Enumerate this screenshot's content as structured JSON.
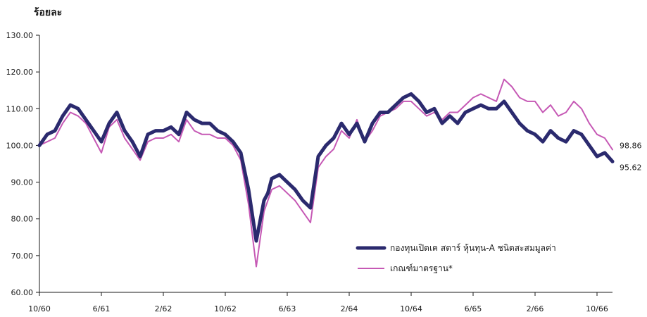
{
  "chart_data": {
    "type": "line",
    "unit_label": "ร้อยละ",
    "ylim": [
      60,
      130
    ],
    "yticks": [
      "60.00",
      "70.00",
      "80.00",
      "90.00",
      "100.00",
      "110.00",
      "120.00",
      "130.00"
    ],
    "xlabels": [
      "10/60",
      "6/61",
      "2/62",
      "10/62",
      "6/63",
      "2/64",
      "10/64",
      "6/65",
      "2/66",
      "10/66"
    ],
    "x_index_range": [
      0,
      74
    ],
    "x_label_positions": [
      0,
      8,
      16,
      24,
      32,
      40,
      48,
      56,
      64,
      72
    ],
    "grid": false,
    "legend_position": "bottom-right",
    "series": [
      {
        "name": "กองทุนเปิดเค สตาร์ หุ้นทุน-A ชนิดสะสมมูลค่า",
        "color": "#2b2a6e",
        "end_label": "95.62",
        "x": [
          0,
          1,
          2,
          3,
          4,
          5,
          6,
          7,
          8,
          9,
          10,
          11,
          12,
          13,
          14,
          15,
          16,
          17,
          18,
          19,
          20,
          21,
          22,
          23,
          24,
          25,
          26,
          27,
          28,
          29,
          29.5,
          30,
          31,
          32,
          33,
          34,
          35,
          36,
          37,
          37.5,
          38,
          39,
          40,
          41,
          42,
          43,
          44,
          45,
          46,
          47,
          48,
          49,
          50,
          51,
          52,
          53,
          54,
          55,
          56,
          57,
          58,
          59,
          60,
          61,
          62,
          63,
          64,
          65,
          66,
          67,
          68,
          69,
          70,
          71,
          72,
          73,
          74
        ],
        "y": [
          100,
          103,
          104,
          108,
          111,
          110,
          107,
          104,
          101,
          106,
          109,
          104,
          101,
          97,
          103,
          104,
          104,
          105,
          103,
          109,
          107,
          106,
          106,
          104,
          103,
          101,
          98,
          88,
          74,
          85,
          87,
          91,
          92,
          90,
          88,
          85,
          83,
          97,
          100,
          101,
          102,
          106,
          103,
          106,
          101,
          106,
          109,
          109,
          111,
          113,
          114,
          112,
          109,
          110,
          106,
          108,
          106,
          109,
          110,
          111,
          110,
          110,
          112,
          109,
          106,
          104,
          103,
          101,
          104,
          102,
          101,
          104,
          103,
          100,
          97,
          98,
          95.62
        ]
      },
      {
        "name": "เกณฑ์มาตรฐาน*",
        "color": "#c659b5",
        "end_label": "98.86",
        "x": [
          0,
          1,
          2,
          3,
          4,
          5,
          6,
          7,
          8,
          9,
          10,
          11,
          12,
          13,
          14,
          15,
          16,
          17,
          18,
          19,
          20,
          21,
          22,
          23,
          24,
          25,
          26,
          27,
          28,
          29,
          29.5,
          30,
          31,
          32,
          33,
          34,
          35,
          36,
          37,
          37.5,
          38,
          39,
          40,
          41,
          42,
          43,
          44,
          45,
          46,
          47,
          48,
          49,
          50,
          51,
          52,
          53,
          54,
          55,
          56,
          57,
          58,
          59,
          60,
          61,
          62,
          63,
          64,
          65,
          66,
          67,
          68,
          69,
          70,
          71,
          72,
          73,
          74
        ],
        "y": [
          100,
          101,
          102,
          106,
          109,
          108,
          106,
          102,
          98,
          105,
          107,
          102,
          99,
          96,
          101,
          102,
          102,
          103,
          101,
          107,
          104,
          103,
          103,
          102,
          102,
          100,
          96,
          84,
          67,
          82,
          85,
          88,
          89,
          87,
          85,
          82,
          79,
          94,
          97,
          98,
          99,
          104,
          102,
          107,
          101,
          104,
          108,
          109,
          110,
          112,
          112,
          110,
          108,
          109,
          107,
          109,
          109,
          111,
          113,
          114,
          113,
          112,
          118,
          116,
          113,
          112,
          112,
          109,
          111,
          108,
          109,
          112,
          110,
          106,
          103,
          102,
          98.86
        ]
      }
    ]
  }
}
